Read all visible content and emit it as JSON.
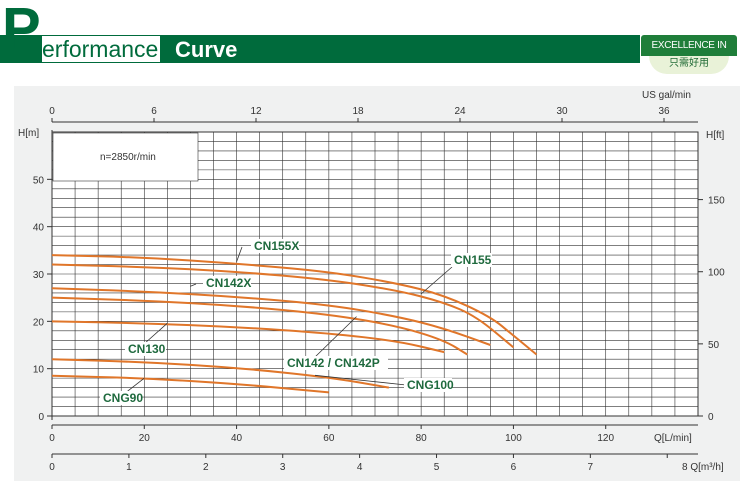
{
  "header": {
    "title_initial": "P",
    "title_word1": "erformance",
    "title_word2": "Curve",
    "badge_top": "EXCELLENCE IN USE",
    "badge_bottom": "只需好用",
    "accent_color": "#006b3c"
  },
  "chart_data": {
    "type": "line",
    "title": "",
    "annotation": "n=2850r/min",
    "left_axis": {
      "label": "H[m]",
      "ticks": [
        0,
        10,
        20,
        30,
        40,
        50
      ],
      "range": [
        0,
        60
      ]
    },
    "right_axis": {
      "label": "H[ft]",
      "ticks": [
        0,
        50,
        100,
        150
      ],
      "range": [
        0,
        196.85
      ]
    },
    "top_axis": {
      "label": "US  gal/min",
      "ticks": [
        0,
        6,
        12,
        18,
        24,
        30,
        36
      ],
      "range": [
        0,
        38
      ]
    },
    "bottom_axis_lmin": {
      "label": "Q[L/min]",
      "ticks": [
        0,
        20,
        40,
        60,
        80,
        100,
        120
      ],
      "range": [
        0,
        140
      ]
    },
    "bottom_axis_m3h": {
      "label": "Q[m³/h]",
      "ticks": [
        0,
        1,
        2,
        3,
        4,
        5,
        6,
        7,
        8
      ],
      "range": [
        0,
        8.4
      ]
    },
    "grid": true,
    "line_color": "#e0762a",
    "series": [
      {
        "name": "CN155X",
        "x": [
          0,
          20,
          40,
          60,
          75,
          85,
          95,
          100,
          105
        ],
        "y": [
          34,
          33.5,
          32.2,
          30.5,
          28,
          25.5,
          21,
          17,
          13
        ]
      },
      {
        "name": "CN155",
        "x": [
          0,
          20,
          40,
          60,
          75,
          85,
          92,
          100
        ],
        "y": [
          32,
          31.5,
          30.5,
          28.8,
          26.5,
          24,
          21,
          14.5
        ]
      },
      {
        "name": "CN142X",
        "x": [
          0,
          20,
          40,
          60,
          75,
          85,
          95
        ],
        "y": [
          27,
          26.3,
          25.2,
          23.5,
          21,
          18.5,
          15
        ]
      },
      {
        "name": "CN142 / CN142P",
        "x": [
          0,
          20,
          40,
          60,
          75,
          85,
          90
        ],
        "y": [
          25,
          24.4,
          23.3,
          21.5,
          19,
          16,
          13
        ]
      },
      {
        "name": "CN130",
        "x": [
          0,
          20,
          40,
          60,
          75,
          85
        ],
        "y": [
          20,
          19.6,
          18.8,
          17.5,
          15.8,
          13.5
        ]
      },
      {
        "name": "CNG100",
        "x": [
          0,
          20,
          40,
          60,
          73
        ],
        "y": [
          12,
          11.4,
          10.2,
          8.2,
          6
        ]
      },
      {
        "name": "CNG90",
        "x": [
          0,
          20,
          40,
          60
        ],
        "y": [
          8.5,
          8,
          6.8,
          5
        ]
      }
    ],
    "labels": [
      {
        "text": "CN155X",
        "series": "CN155X"
      },
      {
        "text": "CN155",
        "series": "CN155"
      },
      {
        "text": "CN142X",
        "series": "CN142X"
      },
      {
        "text": "CN130",
        "series": "CN130"
      },
      {
        "text": "CN142 / CN142P",
        "series": "CN142 / CN142P"
      },
      {
        "text": "CNG100",
        "series": "CNG100"
      },
      {
        "text": "CNG90",
        "series": "CNG90"
      }
    ]
  }
}
